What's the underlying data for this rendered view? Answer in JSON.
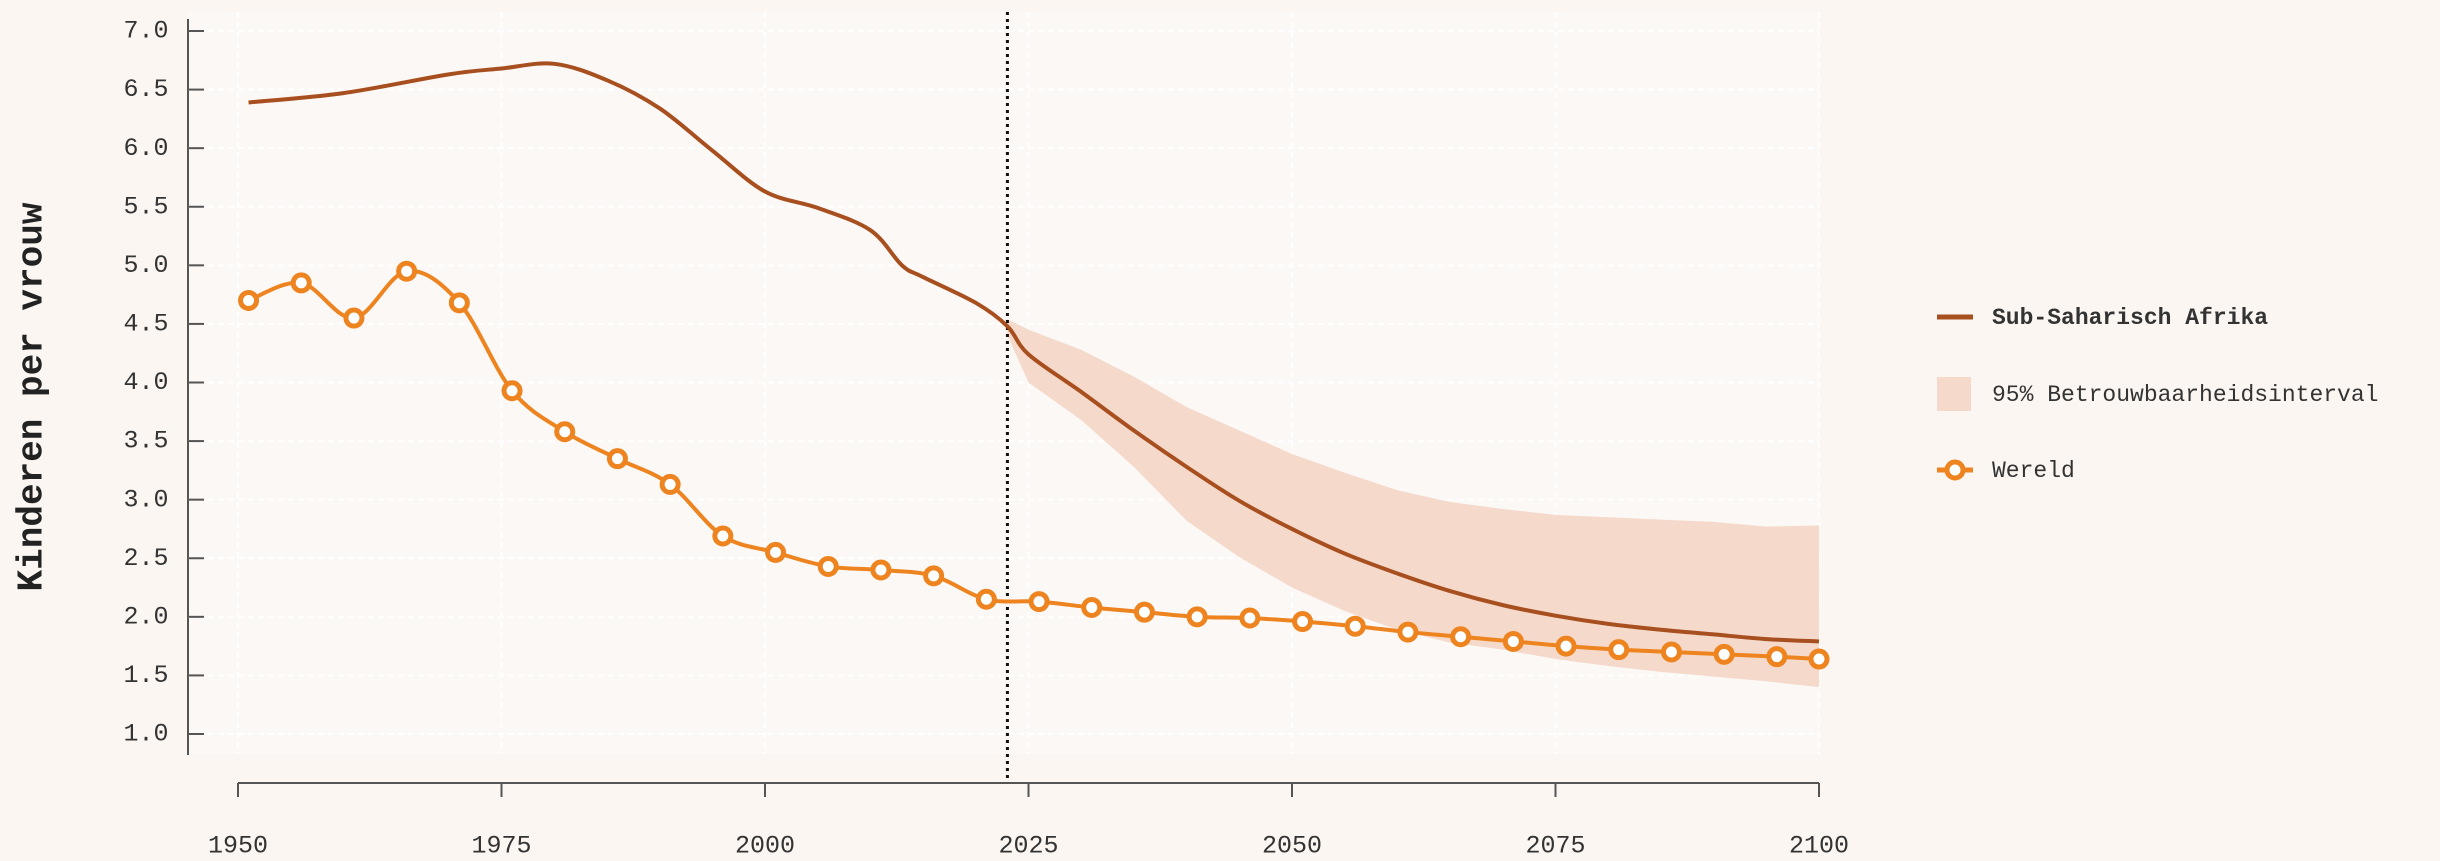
{
  "chart_data": {
    "type": "line",
    "y_label": "Kinderen per vrouw",
    "xlim": [
      1950,
      2100
    ],
    "xticks": [
      1950,
      1975,
      2000,
      2025,
      2050,
      2075,
      2100
    ],
    "ylim": [
      1.0,
      7.0
    ],
    "yticks": [
      {
        "value": 1.0,
        "label": "1.0"
      },
      1.5,
      {
        "value": 2.0,
        "label": "2.0"
      },
      2.5,
      {
        "value": 3.0,
        "label": "3.0"
      },
      3.5,
      {
        "value": 4.0,
        "label": "4.0"
      },
      4.5,
      {
        "value": 5.0,
        "label": "5.0"
      },
      5.5,
      {
        "value": 6.0,
        "label": "6.0"
      },
      6.5,
      {
        "value": 7.0,
        "label": "7.0"
      }
    ],
    "grid": true,
    "legend": "right",
    "projection_start": 2023,
    "series": [
      {
        "name": "Sub-Saharisch Afrika",
        "color": "#a84f1f",
        "markers": false,
        "x": [
          1951,
          1960,
          1970,
          1975,
          1980,
          1985,
          1990,
          1995,
          2000,
          2005,
          2010,
          2013,
          2015,
          2020,
          2023,
          2025,
          2030,
          2035,
          2040,
          2045,
          2050,
          2055,
          2060,
          2065,
          2070,
          2075,
          2080,
          2085,
          2090,
          2095,
          2100
        ],
        "values": [
          6.39,
          6.47,
          6.63,
          6.68,
          6.72,
          6.58,
          6.34,
          5.98,
          5.63,
          5.49,
          5.3,
          5.0,
          4.9,
          4.68,
          4.48,
          4.24,
          3.92,
          3.59,
          3.28,
          2.99,
          2.75,
          2.54,
          2.37,
          2.22,
          2.1,
          2.01,
          1.94,
          1.89,
          1.85,
          1.81,
          1.79
        ]
      },
      {
        "name": "Wereld",
        "color": "#ee8420",
        "markers": true,
        "x": [
          1951,
          1956,
          1961,
          1966,
          1971,
          1976,
          1981,
          1986,
          1991,
          1996,
          2001,
          2006,
          2011,
          2016,
          2021,
          2026,
          2031,
          2036,
          2041,
          2046,
          2051,
          2056,
          2061,
          2066,
          2071,
          2076,
          2081,
          2086,
          2091,
          2096,
          2100
        ],
        "values": [
          4.7,
          4.85,
          4.55,
          4.95,
          4.68,
          3.93,
          3.58,
          3.35,
          3.13,
          2.69,
          2.55,
          2.43,
          2.4,
          2.35,
          2.15,
          2.13,
          2.08,
          2.04,
          2.0,
          1.99,
          1.96,
          1.92,
          1.87,
          1.83,
          1.79,
          1.75,
          1.72,
          1.7,
          1.68,
          1.66,
          1.64
        ]
      }
    ],
    "band": {
      "name": "95% Betrouwbaarheidsinterval",
      "color": "#f5d9cb",
      "x": [
        2023,
        2025,
        2030,
        2035,
        2040,
        2045,
        2050,
        2055,
        2060,
        2065,
        2070,
        2075,
        2080,
        2085,
        2090,
        2095,
        2100
      ],
      "upper": [
        4.54,
        4.45,
        4.28,
        4.05,
        3.79,
        3.59,
        3.39,
        3.23,
        3.08,
        2.98,
        2.92,
        2.87,
        2.85,
        2.83,
        2.81,
        2.77,
        2.78
      ],
      "lower": [
        4.4,
        4.0,
        3.68,
        3.28,
        2.82,
        2.51,
        2.25,
        2.05,
        1.89,
        1.78,
        1.72,
        1.64,
        1.58,
        1.53,
        1.49,
        1.45,
        1.4
      ]
    }
  }
}
